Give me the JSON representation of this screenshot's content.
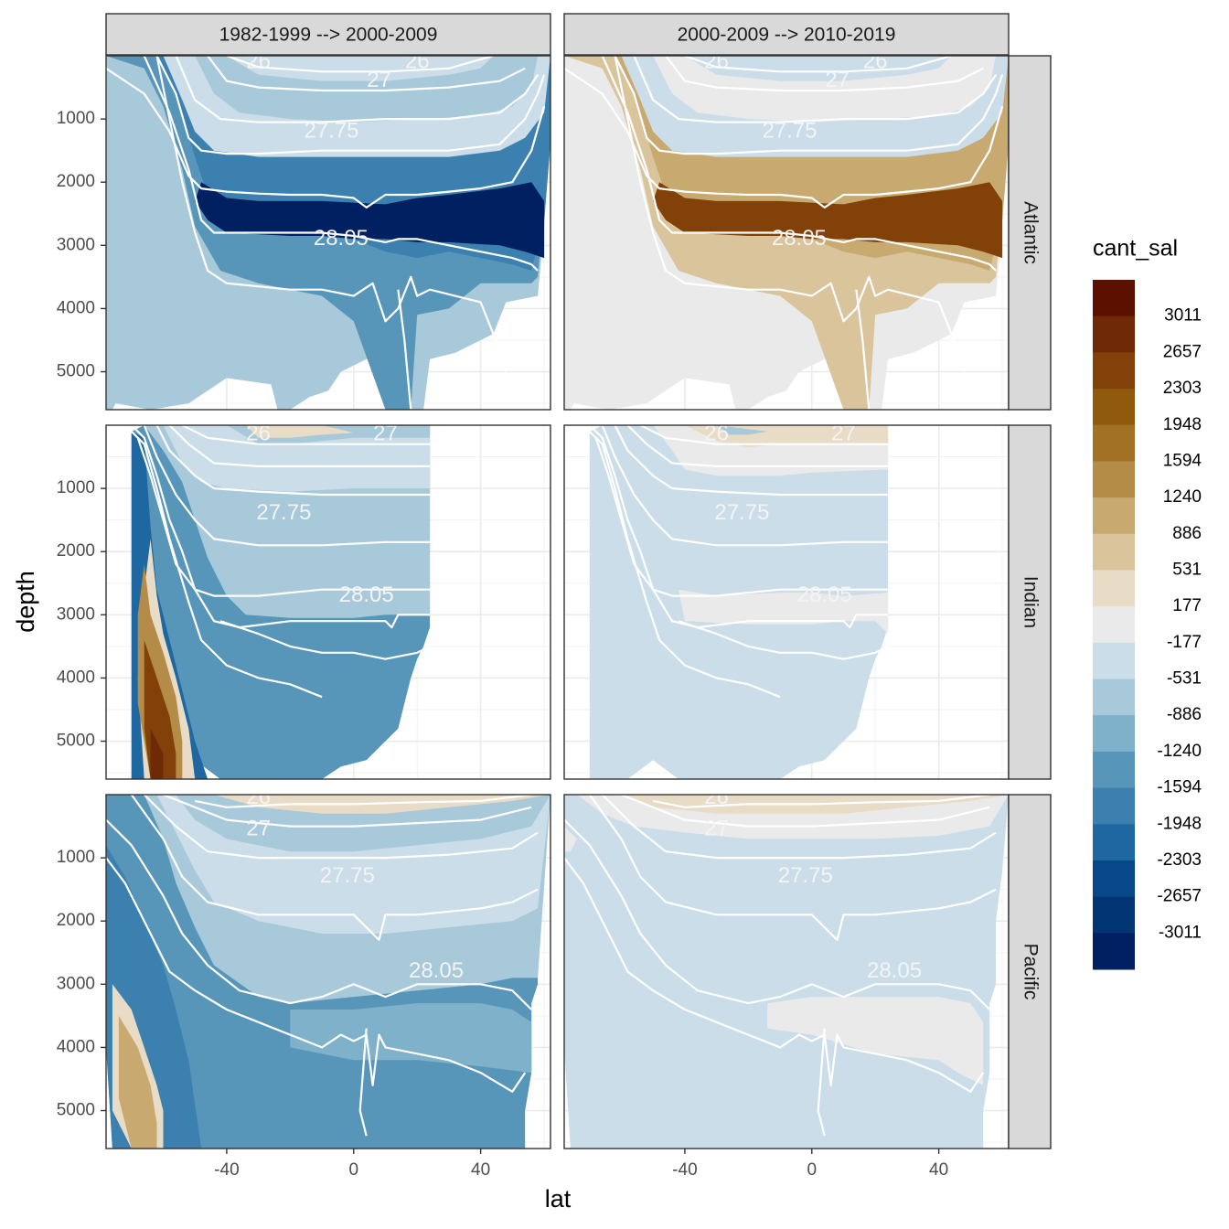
{
  "chart_data": {
    "type": "heatmap",
    "title": "",
    "xlabel": "lat",
    "ylabel": "depth",
    "legend": {
      "title": "cant_sal",
      "position": "right",
      "labels": [
        "3011",
        "2657",
        "2303",
        "1948",
        "1594",
        "1240",
        "886",
        "531",
        "177",
        "-177",
        "-531",
        "-886",
        "-1240",
        "-1594",
        "-1948",
        "-2303",
        "-2657",
        "-3011"
      ],
      "colors": [
        "#5c1100",
        "#6e2a06",
        "#824108",
        "#8f5a0c",
        "#a27126",
        "#b48c48",
        "#c8aa70",
        "#dac49c",
        "#e8dcc6",
        "#eaeaea",
        "#cadde8",
        "#a8c9da",
        "#7fb1cb",
        "#5796b9",
        "#3b80ae",
        "#1f67a0",
        "#07478a",
        "#023573",
        "#002061"
      ]
    },
    "x_ticks": [
      -40,
      0,
      40
    ],
    "y_ticks": [
      1000,
      2000,
      3000,
      4000,
      5000
    ],
    "xlim": [
      -78,
      62
    ],
    "ylim": [
      5600,
      0
    ],
    "y_reversed": true,
    "grid": true,
    "col_facets": [
      "1982-1999 --> 2000-2009",
      "2000-2009 --> 2010-2019"
    ],
    "row_facets": [
      "Atlantic",
      "Indian",
      "Pacific"
    ],
    "isopycnal_labels": [
      "26",
      "27",
      "27.75",
      "28.05"
    ],
    "panels": [
      {
        "basin": "Atlantic",
        "period": "1982-1999 --> 2000-2009",
        "max_depth_core": 2800,
        "core_value": -3011,
        "deep_value": -1240,
        "abyssal_value": -531
      },
      {
        "basin": "Atlantic",
        "period": "2000-2009 --> 2010-2019",
        "max_depth_core": 2800,
        "core_value": 2657,
        "deep_value": 886,
        "abyssal_value": 177
      },
      {
        "basin": "Indian",
        "period": "1982-1999 --> 2000-2009",
        "core_value": -1240,
        "southern_bottom_value": 3011
      },
      {
        "basin": "Indian",
        "period": "2000-2009 --> 2010-2019",
        "core_value": -177,
        "intermediate_value": 531
      },
      {
        "basin": "Pacific",
        "period": "1982-1999 --> 2000-2009",
        "core_value": -1240,
        "southern_bottom_value": 1240
      },
      {
        "basin": "Pacific",
        "period": "2000-2009 --> 2010-2019",
        "core_value": -177,
        "deep_value": 177
      }
    ]
  }
}
